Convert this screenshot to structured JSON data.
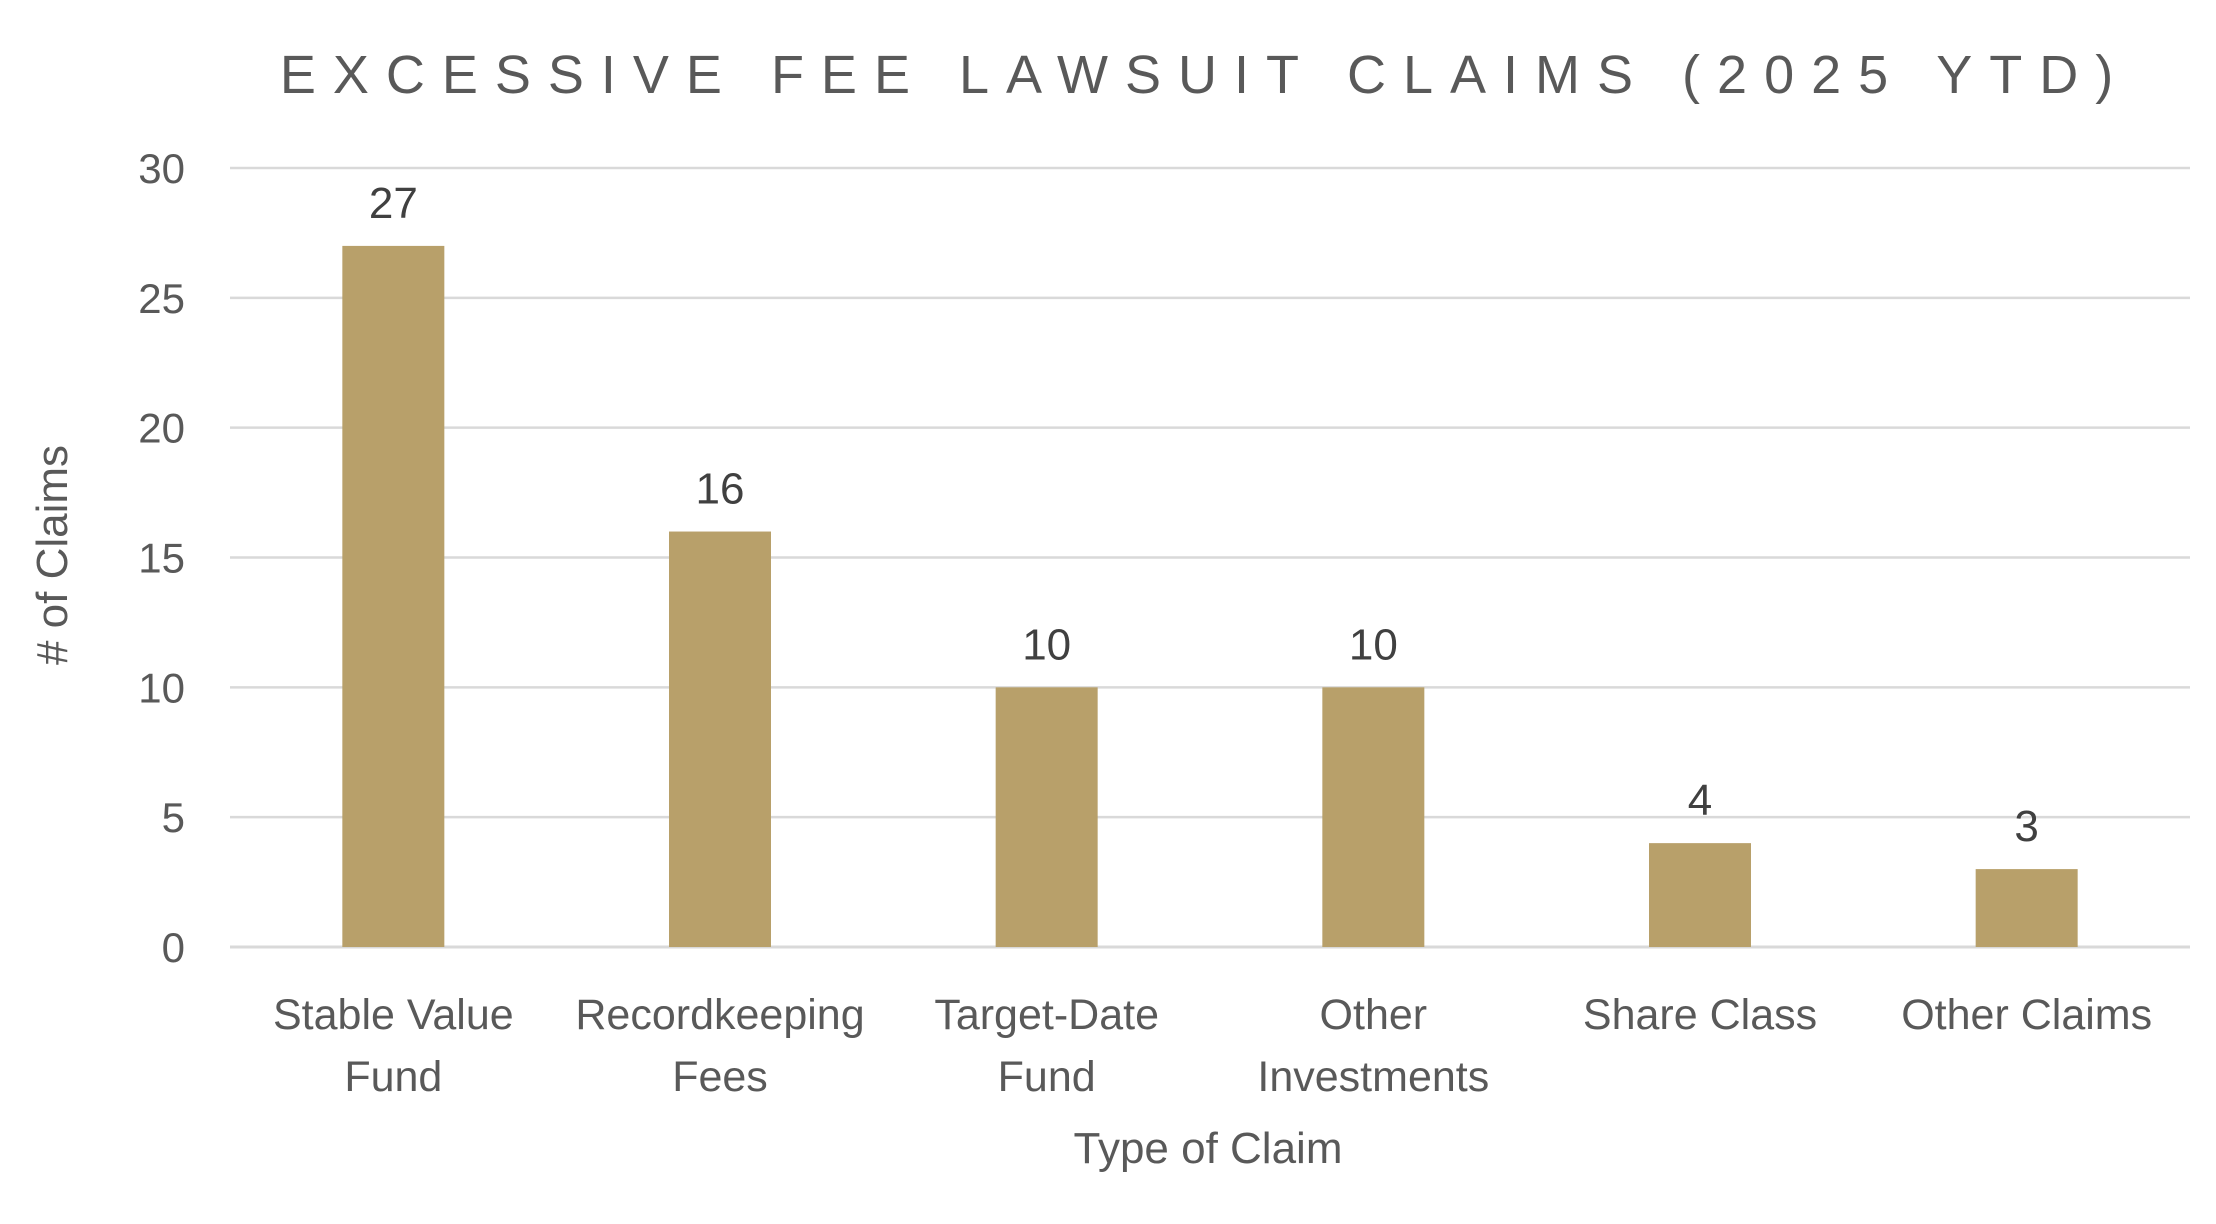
{
  "colors": {
    "bar": "#b8a06a",
    "grid": "#d9d9d9",
    "text": "#595959",
    "data_label": "#404040"
  },
  "chart_data": {
    "type": "bar",
    "title": "EXCESSIVE FEE LAWSUIT CLAIMS (2025 YTD)",
    "xlabel": "Type of Claim",
    "ylabel": "# of Claims",
    "ylim": [
      0,
      30
    ],
    "yticks": [
      0,
      5,
      10,
      15,
      20,
      25,
      30
    ],
    "grid": true,
    "legend": "none",
    "categories": [
      [
        "Stable Value",
        "Fund"
      ],
      [
        "Recordkeeping",
        "Fees"
      ],
      [
        "Target-Date",
        "Fund"
      ],
      [
        "Other",
        "Investments"
      ],
      [
        "Share Class"
      ],
      [
        "Other Claims"
      ]
    ],
    "values": [
      27,
      16,
      10,
      10,
      4,
      3
    ]
  }
}
